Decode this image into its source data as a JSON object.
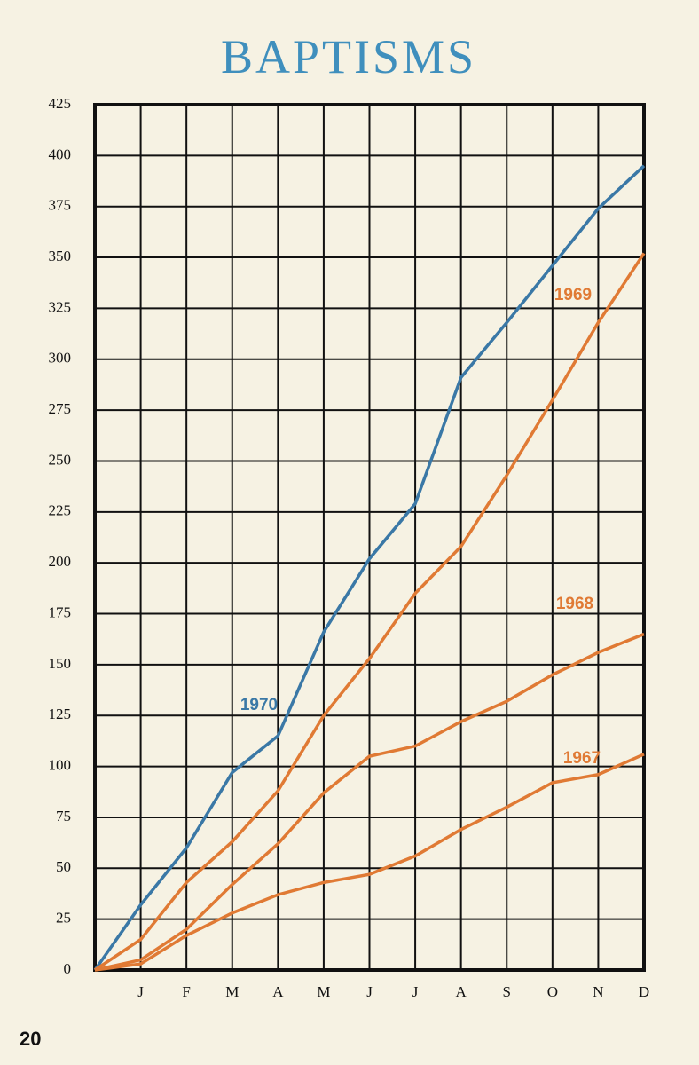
{
  "page_number": "20",
  "chart_data": {
    "type": "line",
    "title": "BAPTISMS",
    "categories": [
      null,
      "J",
      "F",
      "M",
      "A",
      "M",
      "J",
      "J",
      "A",
      "S",
      "O",
      "N",
      "D"
    ],
    "series": [
      {
        "name": "1970",
        "color": "#3a78a6",
        "values": [
          0,
          32,
          60,
          97,
          115,
          166,
          202,
          229,
          291,
          318,
          346,
          374,
          395
        ]
      },
      {
        "name": "1969",
        "color": "#e07a34",
        "values": [
          0,
          15,
          43,
          63,
          88,
          125,
          153,
          185,
          208,
          243,
          280,
          318,
          352
        ]
      },
      {
        "name": "1968",
        "color": "#e07a34",
        "values": [
          0,
          5,
          20,
          42,
          62,
          87,
          105,
          110,
          122,
          132,
          145,
          156,
          165
        ]
      },
      {
        "name": "1967",
        "color": "#e07a34",
        "values": [
          0,
          3,
          17,
          28,
          37,
          43,
          47,
          56,
          69,
          80,
          92,
          96,
          106
        ]
      }
    ],
    "ylim": [
      0,
      425
    ],
    "yticks": [
      0,
      25,
      50,
      75,
      100,
      125,
      150,
      175,
      200,
      225,
      250,
      275,
      300,
      325,
      350,
      375,
      400,
      425
    ],
    "grid": true
  }
}
